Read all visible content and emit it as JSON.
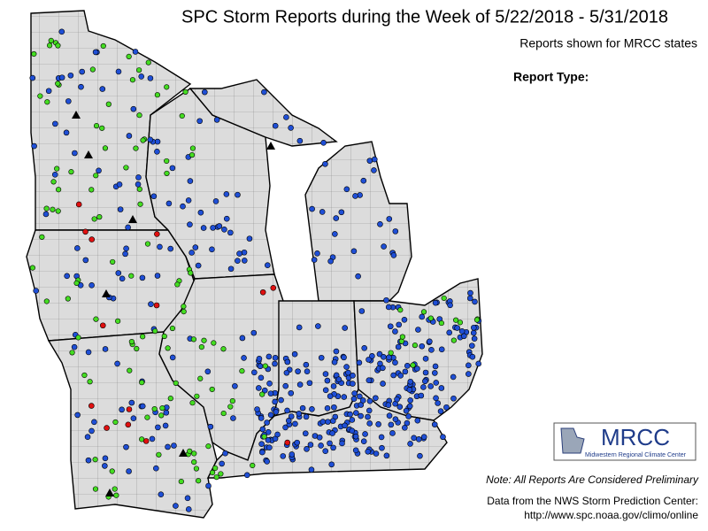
{
  "header": {
    "title": "SPC Storm Reports during the Week of 5/22/2018 - 5/31/2018",
    "subtitle": "Reports shown for MRCC states",
    "legend_label": "Report Type:"
  },
  "footer": {
    "note": "Note: All Reports Are Considered Preliminary",
    "source": "Data from the NWS Storm Prediction Center:",
    "url": "http://www.spc.noaa.gov/climo/online"
  },
  "logo": {
    "acronym": "MRCC",
    "name": "Midwestern Regional Climate Center"
  }
}
